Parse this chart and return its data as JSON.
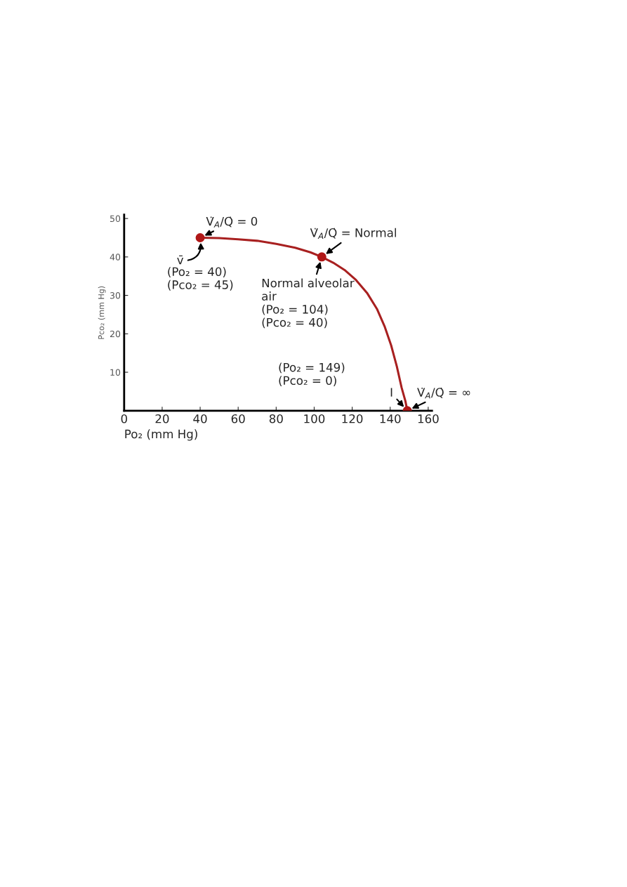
{
  "chart_data": {
    "type": "line",
    "xlabel": "Po₂ (mm Hg)",
    "ylabel": "Pco₂ (mm Hg)",
    "xlim": [
      0,
      162
    ],
    "xticks": [
      0,
      20,
      40,
      60,
      80,
      100,
      120,
      140,
      160
    ],
    "ylim": [
      0,
      51
    ],
    "yticks": [
      10,
      20,
      30,
      40,
      50
    ],
    "grid": false,
    "legend": false,
    "series": [
      {
        "color": "#a82020",
        "x": [
          40,
          50,
          60,
          70,
          80,
          90,
          98,
          104,
          110,
          116,
          122,
          128,
          133,
          137,
          140.5,
          143.5,
          146,
          148,
          149
        ],
        "values": [
          45,
          44.9,
          44.6,
          44.2,
          43.4,
          42.4,
          41.2,
          40,
          38.5,
          36.6,
          34,
          30.5,
          26.5,
          22,
          17,
          11.5,
          6,
          2.5,
          0
        ],
        "marker": "none"
      },
      {
        "type": "scatter",
        "color": "#b01818",
        "x": [
          40,
          104,
          149
        ],
        "values": [
          45,
          40,
          0
        ],
        "marker": "circle"
      }
    ],
    "annotations": [
      {
        "text": "V̇$_{A}$/Q̇ = 0",
        "x": 40,
        "y": 45
      },
      {
        "text": "v̄",
        "x": 40,
        "y": 45
      },
      {
        "text": "(Po₂ = 40)\n(Pco₂ = 45)",
        "x": 40,
        "y": 45
      },
      {
        "text": "V̇$_{A}$/Q̇ = Normal",
        "x": 104,
        "y": 40
      },
      {
        "text": "Normal alveolar\nair\n(Po₂ = 104)\n(Pco₂ = 40)",
        "x": 104,
        "y": 40
      },
      "(Po₂ = 149)\n(Pco₂ = 0)",
      {
        "text": "I",
        "x": 149,
        "y": 0
      },
      {
        "text": "V̇$_{A}$/Q̇ = ∞",
        "x": 149,
        "y": 0
      }
    ]
  }
}
